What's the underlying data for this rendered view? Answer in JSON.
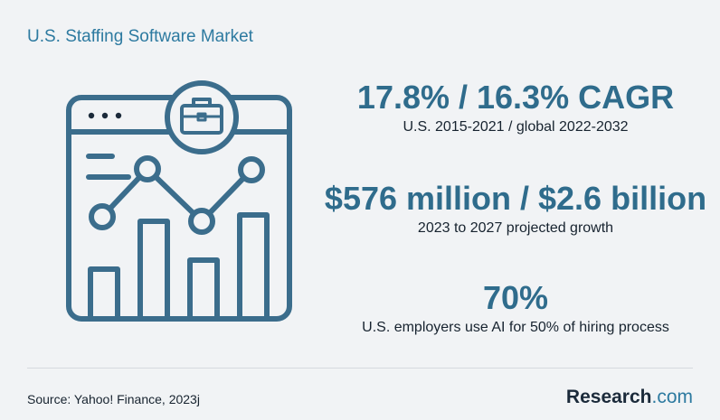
{
  "header": {
    "title": "U.S. Staffing Software Market"
  },
  "stats": [
    {
      "value": "17.8% / 16.3% CAGR",
      "label": "U.S. 2015-2021 / global 2022-2032"
    },
    {
      "value": "$576 million / $2.6 billion",
      "label": "2023 to 2027 projected growth"
    },
    {
      "value": "70%",
      "label": "U.S. employers use AI for 50% of hiring process"
    }
  ],
  "footer": {
    "source": "Source: Yahoo! Finance, 2023j",
    "brand": {
      "name": "Research",
      "suffix": ".com"
    }
  }
}
